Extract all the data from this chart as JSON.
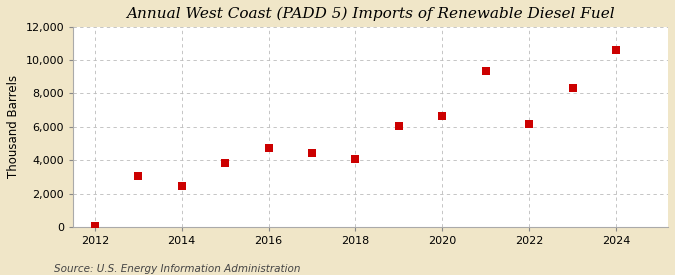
{
  "title": "Annual West Coast (PADD 5) Imports of Renewable Diesel Fuel",
  "ylabel": "Thousand Barrels",
  "source": "Source: U.S. Energy Information Administration",
  "background_color": "#f0e6c8",
  "plot_background_color": "#ffffff",
  "marker_color": "#cc0000",
  "marker_size": 28,
  "years": [
    2012,
    2013,
    2014,
    2015,
    2016,
    2017,
    2018,
    2019,
    2020,
    2021,
    2022,
    2023,
    2024
  ],
  "values": [
    50,
    3050,
    2450,
    3850,
    4750,
    4450,
    4050,
    6050,
    6650,
    9350,
    6200,
    8350,
    10600
  ],
  "ylim": [
    0,
    12000
  ],
  "xlim": [
    2011.5,
    2025.2
  ],
  "yticks": [
    0,
    2000,
    4000,
    6000,
    8000,
    10000,
    12000
  ],
  "xticks": [
    2012,
    2014,
    2016,
    2018,
    2020,
    2022,
    2024
  ],
  "title_fontsize": 11,
  "label_fontsize": 8.5,
  "tick_fontsize": 8,
  "source_fontsize": 7.5
}
